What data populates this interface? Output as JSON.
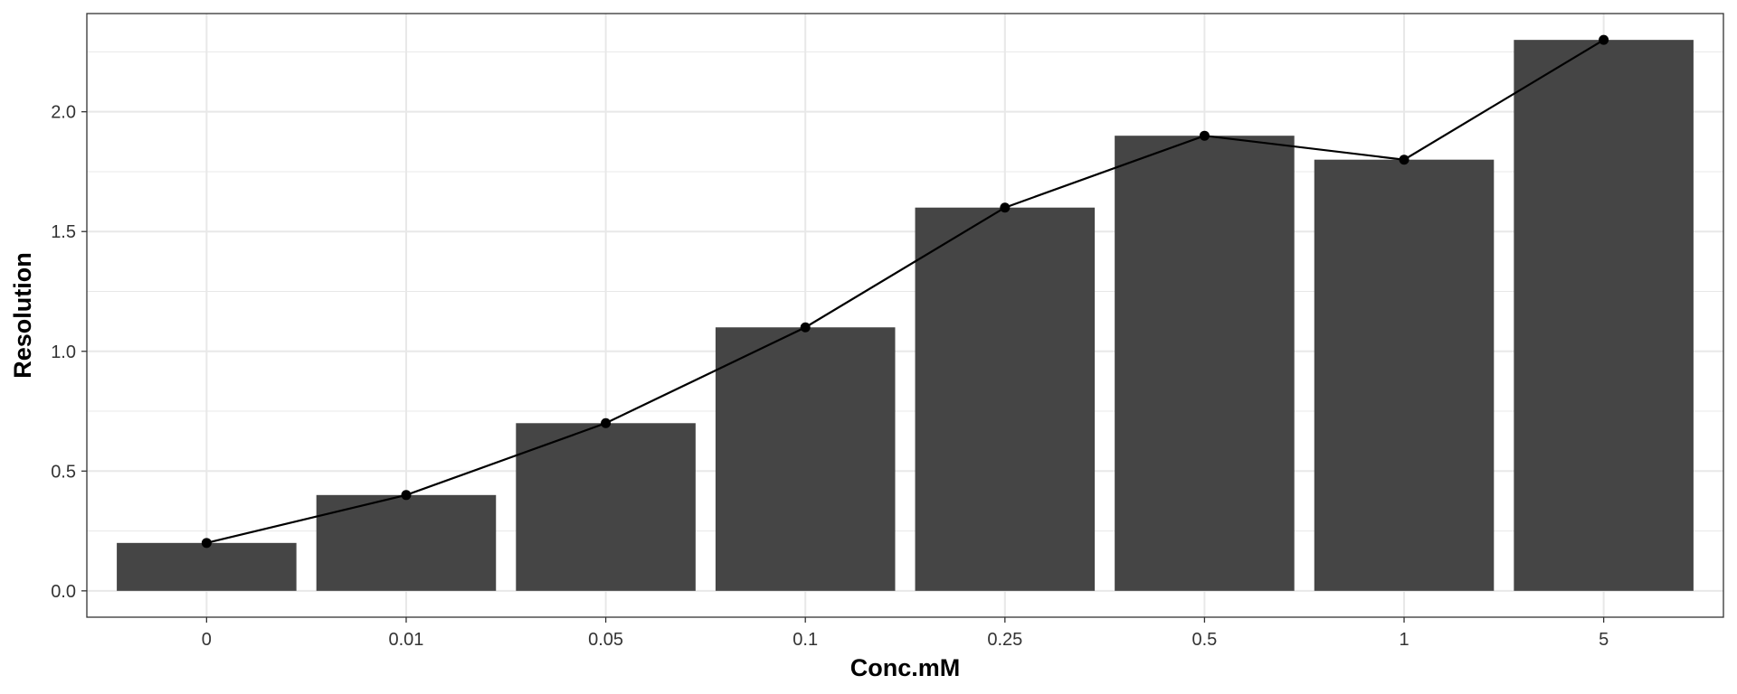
{
  "chart_data": {
    "type": "bar",
    "categories": [
      "0",
      "0.01",
      "0.05",
      "0.1",
      "0.25",
      "0.5",
      "1",
      "5"
    ],
    "values": [
      0.2,
      0.4,
      0.7,
      1.1,
      1.6,
      1.9,
      1.8,
      2.3
    ],
    "overlay": {
      "type": "line",
      "points": true,
      "values": [
        0.2,
        0.4,
        0.7,
        1.1,
        1.6,
        1.9,
        1.8,
        2.3
      ]
    },
    "xlabel": "Conc.mM",
    "ylabel": "Resolution",
    "ylim": [
      -0.11,
      2.41
    ],
    "yticks": [
      0.0,
      0.5,
      1.0,
      1.5,
      2.0
    ],
    "ytick_labels": [
      "0.0",
      "0.5",
      "1.0",
      "1.5",
      "2.0"
    ],
    "grid": true,
    "legend": "none",
    "colors": {
      "bar": "#454545",
      "line": "#000000",
      "grid": "#e8e8e8",
      "panel_border": "#333333",
      "background": "#ffffff"
    }
  }
}
